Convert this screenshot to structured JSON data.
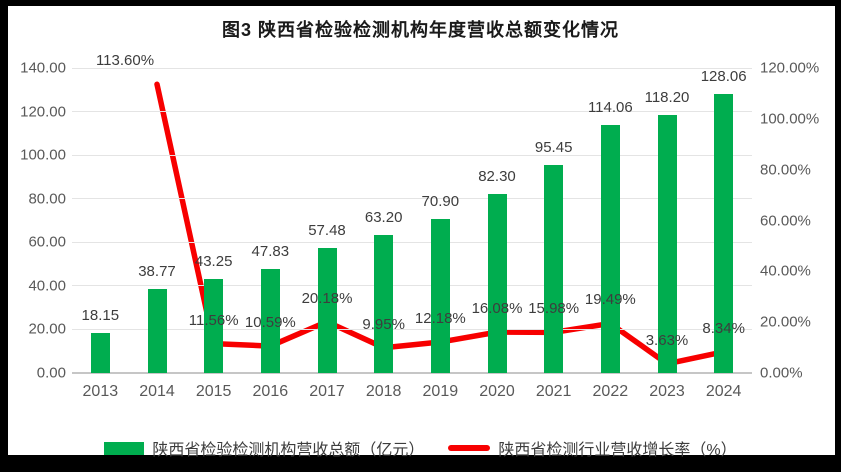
{
  "figure": {
    "title": "图3 陕西省检验检测机构年度营收总额变化情况"
  },
  "chart_data": {
    "type": "combo-bar-line",
    "title": "图3 陕西省检验检测机构年度营收总额变化情况",
    "categories": [
      "2013",
      "2014",
      "2015",
      "2016",
      "2017",
      "2018",
      "2019",
      "2020",
      "2021",
      "2022",
      "2023",
      "2024"
    ],
    "series": [
      {
        "name": "陕西省检验检测机构营收总额（亿元）",
        "type": "bar",
        "axis": "left",
        "color": "#00AD4F",
        "values": [
          18.15,
          38.77,
          43.25,
          47.83,
          57.48,
          63.2,
          70.9,
          82.3,
          95.45,
          114.06,
          118.2,
          128.06
        ],
        "labels": [
          "18.15",
          "38.77",
          "43.25",
          "47.83",
          "57.48",
          "63.20",
          "70.90",
          "82.30",
          "95.45",
          "114.06",
          "118.20",
          "128.06"
        ]
      },
      {
        "name": "陕西省检测行业营收增长率（%）",
        "type": "line",
        "axis": "right",
        "color": "#F70000",
        "values": [
          null,
          113.6,
          11.56,
          10.59,
          20.18,
          9.95,
          12.18,
          16.08,
          15.98,
          19.49,
          3.63,
          8.34
        ],
        "labels": [
          null,
          "113.60%",
          "11.56%",
          "10.59%",
          "20.18%",
          "9.95%",
          "12.18%",
          "16.08%",
          "15.98%",
          "19.49%",
          "3.63%",
          "8.34%"
        ]
      }
    ],
    "left_axis": {
      "min": 0,
      "max": 140,
      "step": 20,
      "tick_labels": [
        "140.00",
        "120.00",
        "100.00",
        "80.00",
        "60.00",
        "40.00",
        "20.00",
        "0.00"
      ]
    },
    "right_axis": {
      "min": 0,
      "max": 120,
      "step": 20,
      "tick_labels": [
        "120.00%",
        "100.00%",
        "80.00%",
        "60.00%",
        "40.00%",
        "20.00%",
        "0.00%"
      ]
    },
    "grid": true,
    "legend_position": "bottom",
    "colors": {
      "bar": "#00AD4F",
      "line": "#F70000",
      "grid": "#E4E4E4",
      "axis_line": "#C6C6C6",
      "axis_text": "#595959",
      "data_label_text": "#3D3D3D",
      "title_text": "#1A1A1A",
      "frame": "#000000",
      "background": "#FFFFFF"
    }
  }
}
